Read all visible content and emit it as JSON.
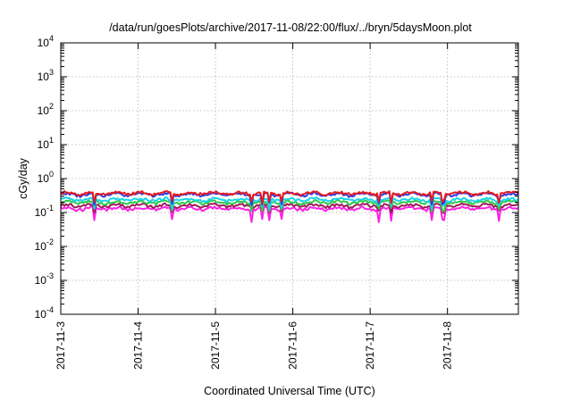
{
  "chart_data": {
    "type": "line",
    "title": "/data/run/goesPlots/archive/2017-11-08/22:00/flux/../bryn/5daysMoon.plot",
    "xlabel": "Coordinated Universal Time (UTC)",
    "ylabel": "cGy/day",
    "x_scale": "time",
    "x_range": [
      "2017-11-03T00:00",
      "2017-11-08T22:00"
    ],
    "x_ticks": [
      "2017-11-3",
      "2017-11-4",
      "2017-11-5",
      "2017-11-6",
      "2017-11-7",
      "2017-11-8"
    ],
    "y_scale": "log",
    "ylim": [
      0.0001,
      10000
    ],
    "y_ticks": [
      {
        "base": "10",
        "exp": "4"
      },
      {
        "base": "10",
        "exp": "3"
      },
      {
        "base": "10",
        "exp": "2"
      },
      {
        "base": "10",
        "exp": "1"
      },
      {
        "base": "10",
        "exp": "0"
      },
      {
        "base": "10",
        "exp": "-1"
      },
      {
        "base": "10",
        "exp": "-2"
      },
      {
        "base": "10",
        "exp": "-3"
      },
      {
        "base": "10",
        "exp": "-4"
      }
    ],
    "grid": true,
    "series": [
      {
        "color": "#e8191e",
        "base": 0.37,
        "dip": 0.22
      },
      {
        "color": "#2a38e6",
        "base": 0.34,
        "dip": 0.2
      },
      {
        "color": "#19d3e6",
        "base": 0.24,
        "dip": 0.15
      },
      {
        "color": "#2ec94a",
        "base": 0.2,
        "dip": 0.13
      },
      {
        "color": "#a01a5a",
        "base": 0.16,
        "dip": 0.11
      },
      {
        "color": "#ff1fe6",
        "base": 0.13,
        "dip": 0.06
      }
    ]
  }
}
